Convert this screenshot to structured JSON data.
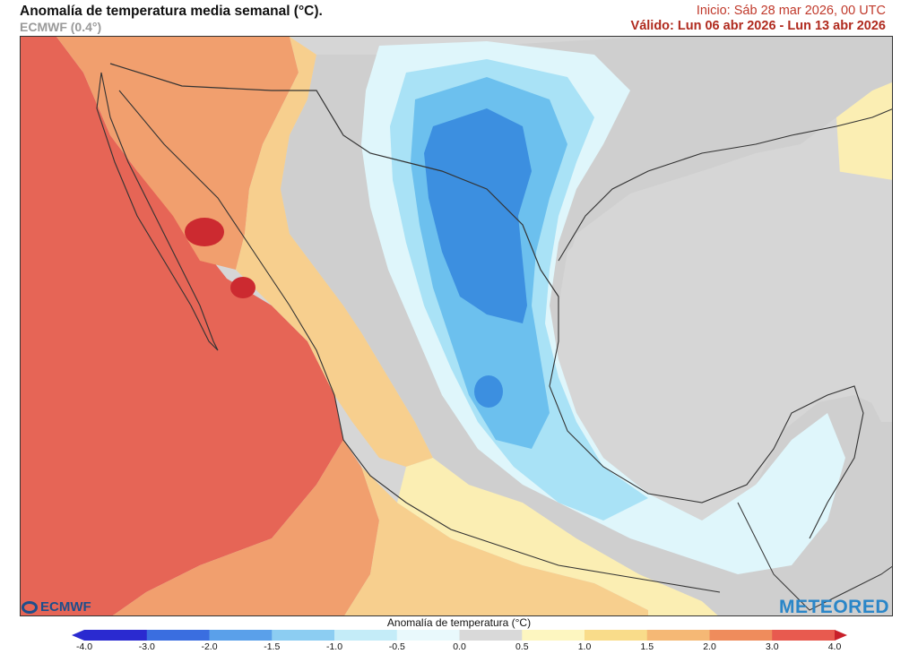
{
  "header": {
    "title": "Anomalía de temperatura media semanal (°C).",
    "model": "ECMWF (0.4°)",
    "init": "Inicio: Sáb 28 mar 2026, 00 UTC",
    "valid": "Válido: Lun 06 abr 2026 - Lun 13 abr 2026"
  },
  "logos": {
    "ecmwf": "ECMWF",
    "meteored": "METEORED"
  },
  "legend": {
    "title": "Anomalía de temperatura (°C)",
    "ticks": [
      "-4.0",
      "-3.0",
      "-2.0",
      "-1.5",
      "-1.0",
      "-0.5",
      "0.0",
      "0.5",
      "1.0",
      "1.5",
      "2.0",
      "3.0",
      "4.0"
    ],
    "colors": [
      "#2a2ad0",
      "#3a6ee0",
      "#5aa0ea",
      "#8ccdf2",
      "#c4ecf8",
      "#e9f9fc",
      "#d9d9d9",
      "#fdf6c0",
      "#f9dc8a",
      "#f5b875",
      "#ef8c5c",
      "#e85a4f",
      "#c8202a"
    ]
  },
  "map_colors": {
    "land_neutral": "#cfcfcf",
    "ocean_neutral": "#d6d6d6",
    "warm_strong": "#e66556",
    "warm_mid": "#f19f6e",
    "warm_light": "#f7cf8e",
    "warm_pale": "#fbeeb3",
    "cool_pale": "#dff6fb",
    "cool_light": "#a9e2f6",
    "cool_mid": "#6cc0ee",
    "cool_strong": "#3c8fe0",
    "hot_core": "#cc2a30",
    "borders": "#333333"
  }
}
